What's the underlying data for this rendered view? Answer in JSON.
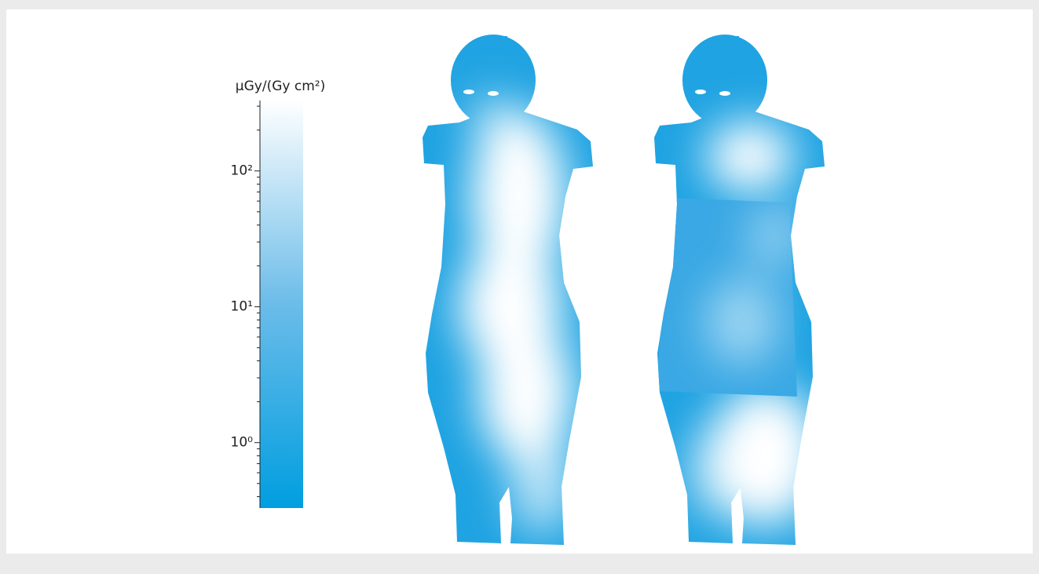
{
  "colorbar": {
    "label": "μGy/(Gy cm²)",
    "scale": "log",
    "lim": [
      0.33,
      330
    ],
    "ticks": [
      {
        "value": 1,
        "label": "10⁰"
      },
      {
        "value": 10,
        "label": "10¹"
      },
      {
        "value": 100,
        "label": "10²"
      }
    ],
    "minor_ticks": [
      0.4,
      0.5,
      0.6,
      0.7,
      0.8,
      0.9,
      2,
      3,
      4,
      5,
      6,
      7,
      8,
      9,
      20,
      30,
      40,
      50,
      60,
      70,
      80,
      90,
      200,
      300
    ]
  }
}
